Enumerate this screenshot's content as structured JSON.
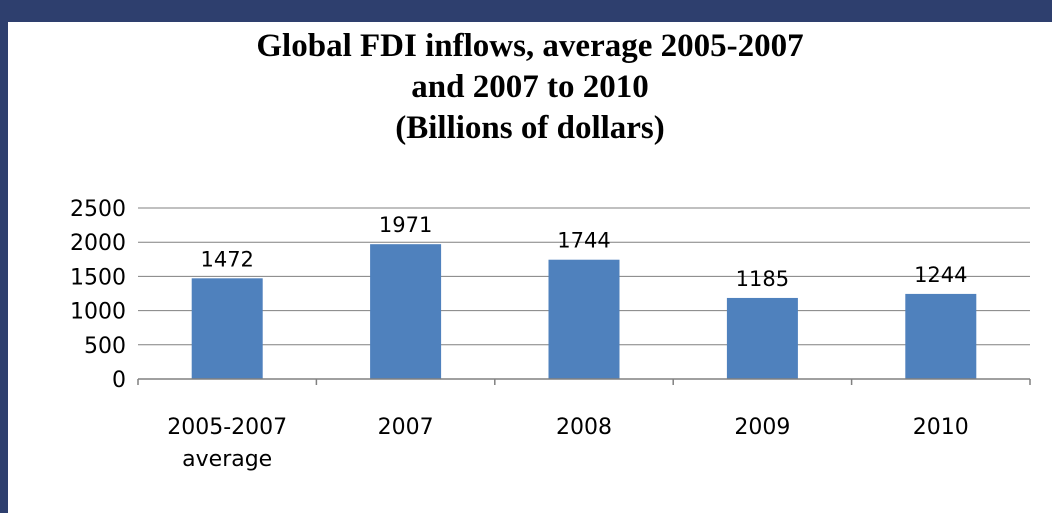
{
  "colors": {
    "background": "#2e3f6e",
    "panel": "#ffffff",
    "bar": "#4f81bd",
    "grid": "#808080",
    "text": "#000000"
  },
  "chart_data": {
    "type": "bar",
    "title_lines": [
      "Global FDI inflows, average 2005-2007",
      "and 2007 to 2010",
      "(Billions of dollars)"
    ],
    "categories": [
      [
        "2005-2007",
        "average"
      ],
      [
        "2007"
      ],
      [
        "2008"
      ],
      [
        "2009"
      ],
      [
        "2010"
      ]
    ],
    "values": [
      1472,
      1971,
      1744,
      1185,
      1244
    ],
    "data_labels": [
      "1472",
      "1971",
      "1744",
      "1185",
      "1244"
    ],
    "y_ticks": [
      0,
      500,
      1000,
      1500,
      2000,
      2500
    ],
    "ylim": [
      0,
      2500
    ],
    "xlabel": "",
    "ylabel": "",
    "grid": true,
    "legend": "none"
  }
}
